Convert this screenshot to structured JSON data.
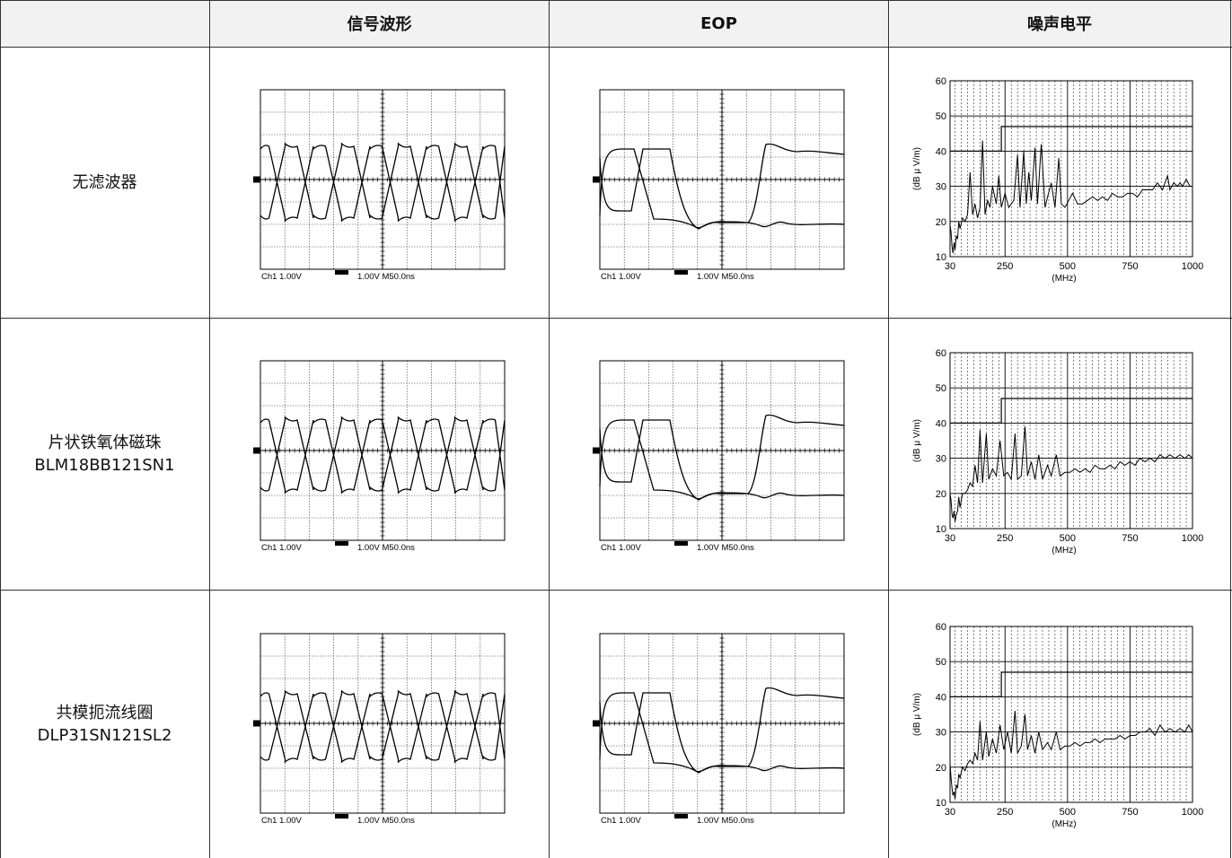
{
  "header": {
    "blank": "",
    "col_signal": "信号波形",
    "col_eop": "EOP",
    "col_noise": "噪声电平"
  },
  "rows": [
    {
      "label_1": "无滤波器",
      "label_2": ""
    },
    {
      "label_1": "片状铁氧体磁珠",
      "label_2": "BLM18BB121SN1"
    },
    {
      "label_1": "共模扼流线圈",
      "label_2": "DLP31SN121SL2"
    }
  ],
  "scope": {
    "caption_ch": "Ch1",
    "caption_v1": "1.00V",
    "caption_v2": "1.00V",
    "caption_time": "M50.0ns"
  },
  "chart_data": [
    {
      "type": "line",
      "row": "无滤波器",
      "xlabel": "(MHz)",
      "ylabel": "(dB μ V/m)",
      "xlim": [
        30,
        1000
      ],
      "ylim": [
        10,
        60
      ],
      "xticks": [
        "30",
        "250",
        "500",
        "750",
        "1000"
      ],
      "yticks": [
        "10",
        "20",
        "30",
        "40",
        "50",
        "60"
      ],
      "grid": true,
      "series": [
        {
          "values": [
            [
              30,
              19
            ],
            [
              34,
              17
            ],
            [
              38,
              13
            ],
            [
              42,
              11
            ],
            [
              46,
              14
            ],
            [
              50,
              12
            ],
            [
              55,
              16
            ],
            [
              60,
              15
            ],
            [
              65,
              20
            ],
            [
              70,
              18
            ],
            [
              80,
              21
            ],
            [
              90,
              20
            ],
            [
              100,
              22
            ],
            [
              110,
              34
            ],
            [
              120,
              22
            ],
            [
              130,
              25
            ],
            [
              140,
              21
            ],
            [
              150,
              24
            ],
            [
              160,
              43
            ],
            [
              170,
              22
            ],
            [
              180,
              26
            ],
            [
              190,
              24
            ],
            [
              200,
              30
            ],
            [
              215,
              25
            ],
            [
              225,
              33
            ],
            [
              235,
              24
            ],
            [
              250,
              28
            ],
            [
              265,
              24
            ],
            [
              285,
              26
            ],
            [
              300,
              39
            ],
            [
              310,
              24
            ],
            [
              325,
              40
            ],
            [
              335,
              25
            ],
            [
              345,
              34
            ],
            [
              355,
              26
            ],
            [
              370,
              41
            ],
            [
              380,
              25
            ],
            [
              395,
              42
            ],
            [
              410,
              24
            ],
            [
              420,
              27
            ],
            [
              435,
              31
            ],
            [
              450,
              24
            ],
            [
              465,
              38
            ],
            [
              475,
              25
            ],
            [
              490,
              24
            ],
            [
              505,
              26
            ],
            [
              520,
              28
            ],
            [
              540,
              25
            ],
            [
              560,
              25
            ],
            [
              580,
              26
            ],
            [
              600,
              27
            ],
            [
              620,
              26
            ],
            [
              640,
              27
            ],
            [
              660,
              26
            ],
            [
              680,
              28
            ],
            [
              700,
              27
            ],
            [
              720,
              27
            ],
            [
              740,
              28
            ],
            [
              760,
              28
            ],
            [
              780,
              27
            ],
            [
              800,
              29
            ],
            [
              820,
              29
            ],
            [
              840,
              29
            ],
            [
              860,
              31
            ],
            [
              880,
              29
            ],
            [
              900,
              33
            ],
            [
              910,
              29
            ],
            [
              925,
              31
            ],
            [
              940,
              30
            ],
            [
              950,
              31
            ],
            [
              960,
              30
            ],
            [
              975,
              32
            ],
            [
              990,
              30
            ],
            [
              1000,
              30
            ]
          ]
        },
        {
          "values": [
            [
              30,
              40
            ],
            [
              235,
              40
            ],
            [
              235,
              47
            ],
            [
              1000,
              47
            ]
          ]
        }
      ]
    },
    {
      "type": "line",
      "row": "片状铁氧体磁珠 BLM18BB121SN1",
      "xlabel": "(MHz)",
      "ylabel": "(dB μ V/m)",
      "xlim": [
        30,
        1000
      ],
      "ylim": [
        10,
        60
      ],
      "xticks": [
        "30",
        "250",
        "500",
        "750",
        "1000"
      ],
      "yticks": [
        "10",
        "20",
        "30",
        "40",
        "50",
        "60"
      ],
      "grid": true,
      "series": [
        {
          "values": [
            [
              30,
              20
            ],
            [
              34,
              18
            ],
            [
              38,
              14
            ],
            [
              42,
              13
            ],
            [
              46,
              15
            ],
            [
              50,
              12
            ],
            [
              55,
              14
            ],
            [
              60,
              15
            ],
            [
              65,
              19
            ],
            [
              70,
              16
            ],
            [
              80,
              20
            ],
            [
              90,
              20
            ],
            [
              100,
              21
            ],
            [
              110,
              23
            ],
            [
              120,
              22
            ],
            [
              130,
              28
            ],
            [
              140,
              23
            ],
            [
              150,
              38
            ],
            [
              160,
              23
            ],
            [
              175,
              37
            ],
            [
              185,
              24
            ],
            [
              200,
              27
            ],
            [
              215,
              25
            ],
            [
              230,
              35
            ],
            [
              245,
              25
            ],
            [
              260,
              26
            ],
            [
              275,
              24
            ],
            [
              290,
              37
            ],
            [
              300,
              24
            ],
            [
              315,
              25
            ],
            [
              330,
              39
            ],
            [
              340,
              25
            ],
            [
              355,
              29
            ],
            [
              370,
              24
            ],
            [
              385,
              31
            ],
            [
              400,
              24
            ],
            [
              420,
              28
            ],
            [
              435,
              25
            ],
            [
              455,
              31
            ],
            [
              470,
              25
            ],
            [
              490,
              26
            ],
            [
              510,
              26
            ],
            [
              530,
              27
            ],
            [
              550,
              26
            ],
            [
              570,
              27
            ],
            [
              590,
              26
            ],
            [
              610,
              28
            ],
            [
              630,
              27
            ],
            [
              650,
              27
            ],
            [
              670,
              28
            ],
            [
              690,
              27
            ],
            [
              710,
              29
            ],
            [
              730,
              28
            ],
            [
              750,
              29
            ],
            [
              770,
              28
            ],
            [
              790,
              30
            ],
            [
              810,
              29
            ],
            [
              830,
              30
            ],
            [
              850,
              29
            ],
            [
              870,
              31
            ],
            [
              890,
              30
            ],
            [
              910,
              31
            ],
            [
              930,
              30
            ],
            [
              950,
              31
            ],
            [
              970,
              30
            ],
            [
              985,
              31
            ],
            [
              1000,
              30
            ]
          ]
        },
        {
          "values": [
            [
              30,
              40
            ],
            [
              235,
              40
            ],
            [
              235,
              47
            ],
            [
              1000,
              47
            ]
          ]
        }
      ]
    },
    {
      "type": "line",
      "row": "共模扼流线圈 DLP31SN121SL2",
      "xlabel": "(MHz)",
      "ylabel": "(dB μ V/m)",
      "xlim": [
        30,
        1000
      ],
      "ylim": [
        10,
        60
      ],
      "xticks": [
        "30",
        "250",
        "500",
        "750",
        "1000"
      ],
      "yticks": [
        "10",
        "20",
        "30",
        "40",
        "50",
        "60"
      ],
      "grid": true,
      "series": [
        {
          "values": [
            [
              30,
              21
            ],
            [
              34,
              17
            ],
            [
              38,
              14
            ],
            [
              42,
              12
            ],
            [
              46,
              13
            ],
            [
              50,
              11
            ],
            [
              55,
              15
            ],
            [
              60,
              14
            ],
            [
              65,
              18
            ],
            [
              70,
              17
            ],
            [
              80,
              20
            ],
            [
              90,
              19
            ],
            [
              100,
              21
            ],
            [
              110,
              22
            ],
            [
              120,
              21
            ],
            [
              130,
              24
            ],
            [
              140,
              22
            ],
            [
              150,
              33
            ],
            [
              160,
              22
            ],
            [
              175,
              30
            ],
            [
              185,
              23
            ],
            [
              200,
              28
            ],
            [
              215,
              24
            ],
            [
              230,
              32
            ],
            [
              245,
              25
            ],
            [
              260,
              30
            ],
            [
              275,
              24
            ],
            [
              290,
              36
            ],
            [
              300,
              24
            ],
            [
              315,
              26
            ],
            [
              330,
              35
            ],
            [
              340,
              25
            ],
            [
              355,
              29
            ],
            [
              370,
              24
            ],
            [
              385,
              30
            ],
            [
              400,
              25
            ],
            [
              420,
              27
            ],
            [
              435,
              25
            ],
            [
              455,
              30
            ],
            [
              470,
              25
            ],
            [
              490,
              26
            ],
            [
              510,
              26
            ],
            [
              530,
              27
            ],
            [
              550,
              26
            ],
            [
              570,
              27
            ],
            [
              590,
              27
            ],
            [
              610,
              28
            ],
            [
              630,
              27
            ],
            [
              650,
              28
            ],
            [
              670,
              28
            ],
            [
              690,
              28
            ],
            [
              710,
              29
            ],
            [
              730,
              28
            ],
            [
              750,
              29
            ],
            [
              770,
              29
            ],
            [
              790,
              30
            ],
            [
              810,
              30
            ],
            [
              830,
              31
            ],
            [
              850,
              29
            ],
            [
              870,
              32
            ],
            [
              890,
              30
            ],
            [
              910,
              31
            ],
            [
              930,
              30
            ],
            [
              950,
              31
            ],
            [
              970,
              30
            ],
            [
              985,
              32
            ],
            [
              1000,
              30
            ]
          ]
        },
        {
          "values": [
            [
              30,
              40
            ],
            [
              235,
              40
            ],
            [
              235,
              47
            ],
            [
              1000,
              47
            ]
          ]
        }
      ]
    }
  ]
}
